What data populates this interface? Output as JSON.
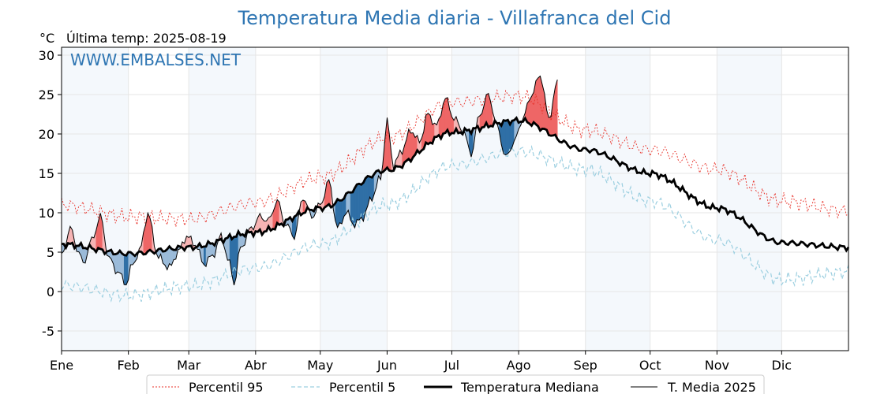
{
  "chart_data": {
    "type": "line",
    "title": "Temperatura Media diaria - Villafranca del Cid",
    "unit_label": "°C",
    "last_temp_label": "Última temp: 2025-08-19",
    "watermark": "WWW.EMBALSES.NET",
    "xlim": [
      0,
      365
    ],
    "ylim": [
      -7.5,
      31
    ],
    "y_ticks": [
      -5,
      0,
      5,
      10,
      15,
      20,
      25,
      30
    ],
    "x_tick_labels": [
      "Ene",
      "Feb",
      "Mar",
      "Abr",
      "May",
      "Jun",
      "Jul",
      "Ago",
      "Sep",
      "Oct",
      "Nov",
      "Dic"
    ],
    "x_tick_days": [
      0,
      31,
      59,
      90,
      120,
      151,
      181,
      212,
      243,
      273,
      304,
      334
    ],
    "grid": true,
    "shaded_months": "alternating",
    "legend_position": "bottom",
    "colors": {
      "p95": "#e8322a",
      "p5": "#9ccfe0",
      "median": "#000000",
      "t2025": "#000000",
      "above_light": "#f6b4b4",
      "above_strong": "#ee6666",
      "below_light": "#9bbbd9",
      "below_strong": "#2f6fa6",
      "month_shade": "#f4f8fc",
      "title": "#2f76b3"
    },
    "series": [
      {
        "name": "Percentil 95",
        "key": "p95",
        "style": "dotted",
        "knots": [
          [
            0,
            11
          ],
          [
            31,
            9.5
          ],
          [
            59,
            9.2
          ],
          [
            90,
            11.3
          ],
          [
            120,
            14.5
          ],
          [
            151,
            19.5
          ],
          [
            181,
            24.0
          ],
          [
            212,
            24.8
          ],
          [
            243,
            20.5
          ],
          [
            273,
            18.0
          ],
          [
            304,
            15.5
          ],
          [
            334,
            11.5
          ],
          [
            365,
            10.2
          ]
        ]
      },
      {
        "name": "Percentil 5",
        "key": "p5",
        "style": "dashed",
        "knots": [
          [
            0,
            0.8
          ],
          [
            31,
            -0.5
          ],
          [
            59,
            0.7
          ],
          [
            90,
            3.0
          ],
          [
            120,
            6.0
          ],
          [
            151,
            11.0
          ],
          [
            181,
            16.0
          ],
          [
            212,
            17.8
          ],
          [
            243,
            15.5
          ],
          [
            273,
            11.5
          ],
          [
            304,
            6.5
          ],
          [
            334,
            1.5
          ],
          [
            365,
            2.5
          ]
        ]
      },
      {
        "name": "Temperatura Mediana",
        "key": "median",
        "style": "thick",
        "knots": [
          [
            0,
            6.0
          ],
          [
            31,
            4.8
          ],
          [
            59,
            5.6
          ],
          [
            90,
            7.5
          ],
          [
            120,
            10.6
          ],
          [
            151,
            15.4
          ],
          [
            181,
            20.2
          ],
          [
            212,
            21.7
          ],
          [
            243,
            18.0
          ],
          [
            273,
            15.0
          ],
          [
            304,
            10.6
          ],
          [
            334,
            6.2
          ],
          [
            365,
            5.6
          ]
        ]
      },
      {
        "name": "T. Media 2025",
        "key": "t2025",
        "style": "thin",
        "end_day": 230,
        "knots": [
          [
            0,
            4.5
          ],
          [
            4,
            8
          ],
          [
            8,
            5
          ],
          [
            10,
            3.5
          ],
          [
            14,
            6.5
          ],
          [
            18,
            9.5
          ],
          [
            22,
            4.2
          ],
          [
            26,
            2.5
          ],
          [
            30,
            1.0
          ],
          [
            33,
            3.5
          ],
          [
            36,
            5.0
          ],
          [
            40,
            9.8
          ],
          [
            45,
            4.3
          ],
          [
            50,
            3.0
          ],
          [
            54,
            5.0
          ],
          [
            58,
            7.0
          ],
          [
            62,
            6.0
          ],
          [
            66,
            3.5
          ],
          [
            70,
            4.5
          ],
          [
            74,
            7.0
          ],
          [
            78,
            3.5
          ],
          [
            80,
            1.0
          ],
          [
            83,
            5.5
          ],
          [
            88,
            8.0
          ],
          [
            92,
            9.5
          ],
          [
            96,
            9.0
          ],
          [
            100,
            11.5
          ],
          [
            104,
            8.5
          ],
          [
            108,
            7.0
          ],
          [
            112,
            12.0
          ],
          [
            116,
            9.5
          ],
          [
            120,
            11.0
          ],
          [
            124,
            14.0
          ],
          [
            128,
            8.0
          ],
          [
            132,
            10.0
          ],
          [
            136,
            8.5
          ],
          [
            140,
            9.5
          ],
          [
            144,
            12.0
          ],
          [
            148,
            14.5
          ],
          [
            151,
            21.5
          ],
          [
            154,
            16.0
          ],
          [
            158,
            18.0
          ],
          [
            162,
            20.5
          ],
          [
            166,
            19.0
          ],
          [
            170,
            22.5
          ],
          [
            174,
            21.0
          ],
          [
            178,
            24.5
          ],
          [
            182,
            22.0
          ],
          [
            186,
            20.5
          ],
          [
            190,
            17.5
          ],
          [
            194,
            22.5
          ],
          [
            198,
            25.0
          ],
          [
            202,
            21.0
          ],
          [
            206,
            17.0
          ],
          [
            210,
            19.0
          ],
          [
            214,
            22.0
          ],
          [
            218,
            25.0
          ],
          [
            222,
            27.5
          ],
          [
            226,
            22.0
          ],
          [
            230,
            26.5
          ]
        ]
      }
    ]
  },
  "legend": {
    "items": [
      "Percentil 95",
      "Percentil 5",
      "Temperatura Mediana",
      "T. Media 2025"
    ]
  }
}
